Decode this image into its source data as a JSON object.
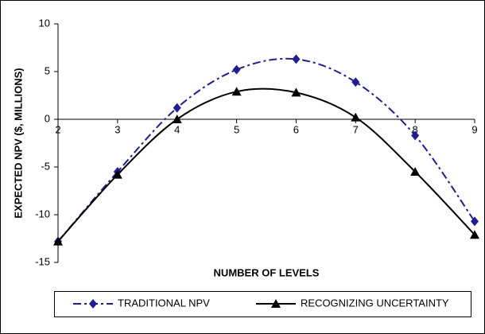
{
  "chart_data": {
    "type": "line",
    "x_label": "NUMBER OF LEVELS",
    "y_label": "EXPECTED NPV ($, MILLIONS)",
    "x": [
      2,
      3,
      4,
      5,
      6,
      7,
      8,
      9
    ],
    "series": [
      {
        "name": "TRADITIONAL NPV",
        "color": "#1f1f8f",
        "marker": "diamond",
        "dashed": true,
        "values": [
          -12.8,
          -5.5,
          1.2,
          5.2,
          6.3,
          3.9,
          -1.7,
          -10.7
        ]
      },
      {
        "name": "RECOGNIZING UNCERTAINTY",
        "color": "#000000",
        "marker": "triangle",
        "dashed": false,
        "values": [
          -12.8,
          -5.8,
          0,
          2.9,
          2.8,
          0.2,
          -5.5,
          -12.1
        ]
      }
    ],
    "xlim": [
      2,
      9
    ],
    "xticks": [
      2,
      3,
      4,
      5,
      6,
      7,
      8,
      9
    ],
    "ylim": [
      -15,
      10
    ],
    "yticks": [
      -15,
      -10,
      -5,
      0,
      5,
      10
    ],
    "legend": "bottom"
  }
}
